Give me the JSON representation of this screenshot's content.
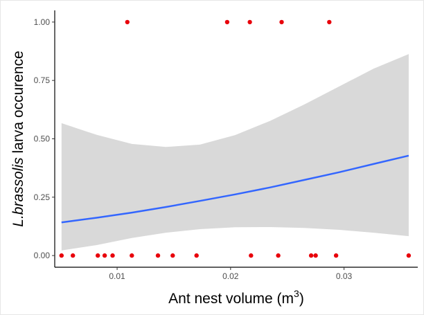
{
  "chart_data": {
    "type": "scatter",
    "title": "",
    "xlabel": "Ant nest volume (m",
    "xlabel_superscript": "3",
    "xlabel_close": ")",
    "ylabel_italic": "L.brassolis",
    "ylabel_rest": " larva occurence",
    "xlim": [
      0.0045,
      0.0365
    ],
    "ylim": [
      -0.05,
      1.05
    ],
    "x_ticks": [
      0.01,
      0.02,
      0.03
    ],
    "x_tick_labels": [
      "0.01",
      "0.02",
      "0.03"
    ],
    "y_ticks": [
      0,
      0.25,
      0.5,
      0.75,
      1.0
    ],
    "y_tick_labels": [
      "0.00",
      "0.25",
      "0.50",
      "0.75",
      "1.00"
    ],
    "grid": false,
    "points": {
      "color": "#e8000b",
      "x": [
        0.0051,
        0.0061,
        0.0083,
        0.0089,
        0.0096,
        0.0113,
        0.0136,
        0.0149,
        0.017,
        0.0218,
        0.0242,
        0.0271,
        0.0275,
        0.0293,
        0.0357,
        0.0109,
        0.0197,
        0.0217,
        0.0245,
        0.0287
      ],
      "y": [
        0,
        0,
        0,
        0,
        0,
        0,
        0,
        0,
        0,
        0,
        0,
        0,
        0,
        0,
        0,
        1,
        1,
        1,
        1,
        1
      ]
    },
    "fit_line": {
      "color": "#3366ff",
      "x": [
        0.0051,
        0.0082,
        0.0113,
        0.0143,
        0.0173,
        0.0204,
        0.0235,
        0.0265,
        0.0296,
        0.0326,
        0.0357
      ],
      "y": [
        0.142,
        0.162,
        0.184,
        0.208,
        0.234,
        0.262,
        0.292,
        0.324,
        0.357,
        0.392,
        0.428
      ]
    },
    "confidence_band": {
      "color": "#d9d9d9",
      "x": [
        0.0051,
        0.0082,
        0.0113,
        0.0143,
        0.0173,
        0.0204,
        0.0235,
        0.0265,
        0.0296,
        0.0326,
        0.0357
      ],
      "lower": [
        0.022,
        0.045,
        0.075,
        0.098,
        0.113,
        0.121,
        0.122,
        0.118,
        0.11,
        0.098,
        0.083
      ],
      "upper": [
        0.567,
        0.517,
        0.478,
        0.465,
        0.475,
        0.516,
        0.577,
        0.647,
        0.725,
        0.8,
        0.863
      ]
    }
  }
}
